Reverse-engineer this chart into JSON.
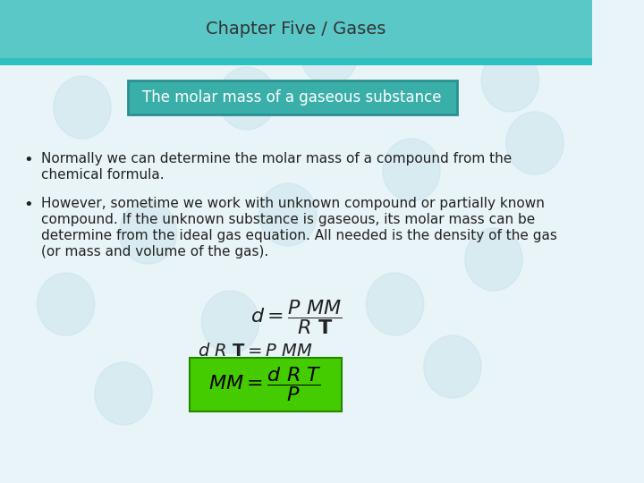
{
  "title": "Chapter Five / Gases",
  "subtitle": "The molar mass of a gaseous substance",
  "bullet1_line1": "Normally we can determine the molar mass of a compound from the",
  "bullet1_line2": "chemical formula.",
  "bullet2_line1": "However, sometime we work with unknown compound or partially known",
  "bullet2_line2": "compound. If the unknown substance is gaseous, its molar mass can be",
  "bullet2_line3": "determine from the ideal gas equation. All needed is the density of the gas",
  "bullet2_line4": "(or mass and volume of the gas).",
  "eq1": "d = \\frac{P\\,MM}{R\\,\\mathbf{T}}",
  "eq2": "d\\,R\\,\\mathbf{T} = P\\,MM",
  "eq3": "MM = \\frac{d\\,R\\,T}{P}",
  "bg_color": "#e8f4f8",
  "header_bg": "#5bc8c8",
  "header_stripe": "#40b0b0",
  "header_text_color": "#333333",
  "subtitle_bg": "#3aafa9",
  "subtitle_text_color": "#ffffff",
  "body_text_color": "#222222",
  "green_box_bg": "#44cc00",
  "green_box_text_color": "#000000",
  "title_fontsize": 14,
  "subtitle_fontsize": 12,
  "body_fontsize": 11,
  "eq_fontsize": 14
}
